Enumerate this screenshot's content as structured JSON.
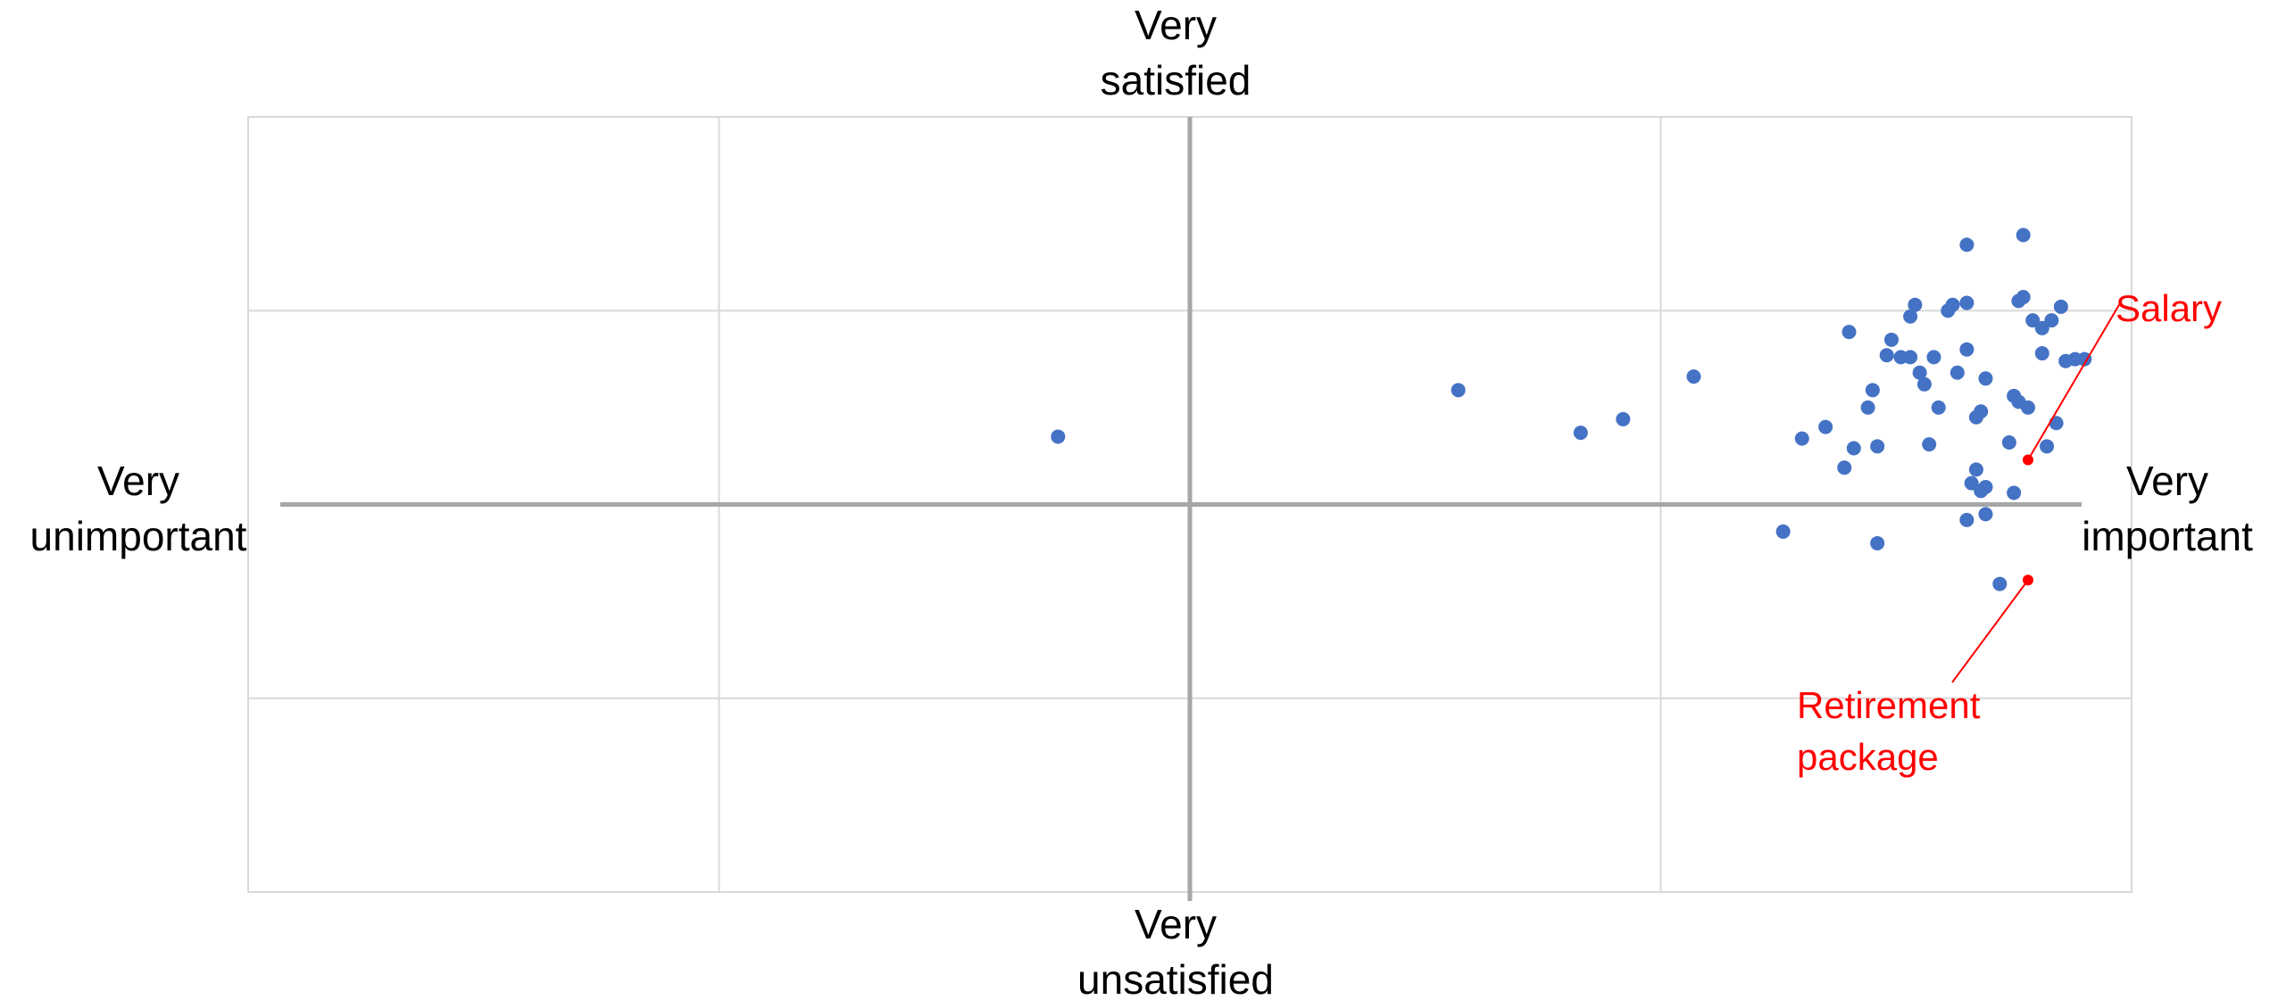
{
  "chart_data": {
    "type": "scatter",
    "title": "",
    "xlim": [
      -10,
      10
    ],
    "ylim": [
      -2,
      2
    ],
    "x_gridlines": [
      -5,
      0,
      5
    ],
    "y_gridlines": [
      -1,
      0,
      1
    ],
    "grid": true,
    "quadrant_labels": {
      "top": [
        "Very",
        "satisfied"
      ],
      "bottom": [
        "Very",
        "unsatisfied"
      ],
      "left": [
        "Very",
        "unimportant"
      ],
      "right": [
        "Very",
        "important"
      ]
    },
    "colors": {
      "points": "#4472C4",
      "highlight": "#FF0000",
      "grid": "#D9D9D9",
      "axis": "#A6A6A6",
      "text": "#000000"
    },
    "series": [
      {
        "points": [
          [
            -1.4,
            0.35
          ],
          [
            2.85,
            0.59
          ],
          [
            4.15,
            0.37
          ],
          [
            4.6,
            0.44
          ],
          [
            5.35,
            0.66
          ],
          [
            6.3,
            -0.14
          ],
          [
            6.5,
            0.34
          ],
          [
            6.75,
            0.4
          ],
          [
            6.95,
            0.19
          ],
          [
            7.0,
            0.89
          ],
          [
            7.05,
            0.29
          ],
          [
            7.2,
            0.5
          ],
          [
            7.25,
            0.59
          ],
          [
            7.3,
            0.3
          ],
          [
            7.3,
            -0.2
          ],
          [
            7.4,
            0.77
          ],
          [
            7.45,
            0.85
          ],
          [
            7.55,
            0.76
          ],
          [
            7.65,
            0.97
          ],
          [
            7.65,
            0.76
          ],
          [
            7.7,
            1.03
          ],
          [
            7.75,
            0.68
          ],
          [
            7.8,
            0.62
          ],
          [
            7.85,
            0.31
          ],
          [
            7.9,
            0.76
          ],
          [
            7.95,
            0.5
          ],
          [
            8.05,
            1.0
          ],
          [
            8.1,
            1.03
          ],
          [
            8.15,
            0.68
          ],
          [
            8.25,
            1.04
          ],
          [
            8.25,
            0.8
          ],
          [
            8.25,
            1.34
          ],
          [
            8.25,
            -0.08
          ],
          [
            8.3,
            0.11
          ],
          [
            8.35,
            0.18
          ],
          [
            8.35,
            0.45
          ],
          [
            8.4,
            0.48
          ],
          [
            8.4,
            0.07
          ],
          [
            8.45,
            0.09
          ],
          [
            8.45,
            0.65
          ],
          [
            8.45,
            -0.05
          ],
          [
            8.6,
            -0.41
          ],
          [
            8.7,
            0.32
          ],
          [
            8.75,
            0.56
          ],
          [
            8.75,
            0.06
          ],
          [
            8.8,
            0.53
          ],
          [
            8.8,
            1.05
          ],
          [
            8.85,
            1.07
          ],
          [
            8.85,
            1.39
          ],
          [
            8.9,
            0.5
          ],
          [
            8.95,
            0.95
          ],
          [
            9.05,
            0.91
          ],
          [
            9.05,
            0.78
          ],
          [
            9.1,
            0.3
          ],
          [
            9.15,
            0.95
          ],
          [
            9.2,
            0.42
          ],
          [
            9.25,
            1.02
          ],
          [
            9.3,
            0.74
          ],
          [
            9.4,
            0.75
          ],
          [
            9.5,
            0.75
          ]
        ]
      }
    ],
    "highlighted": [
      {
        "label": [
          "Salary"
        ],
        "x": 8.9,
        "y": 0.23
      },
      {
        "label": [
          "Retirement",
          "package"
        ],
        "x": 8.9,
        "y": -0.39
      }
    ]
  }
}
